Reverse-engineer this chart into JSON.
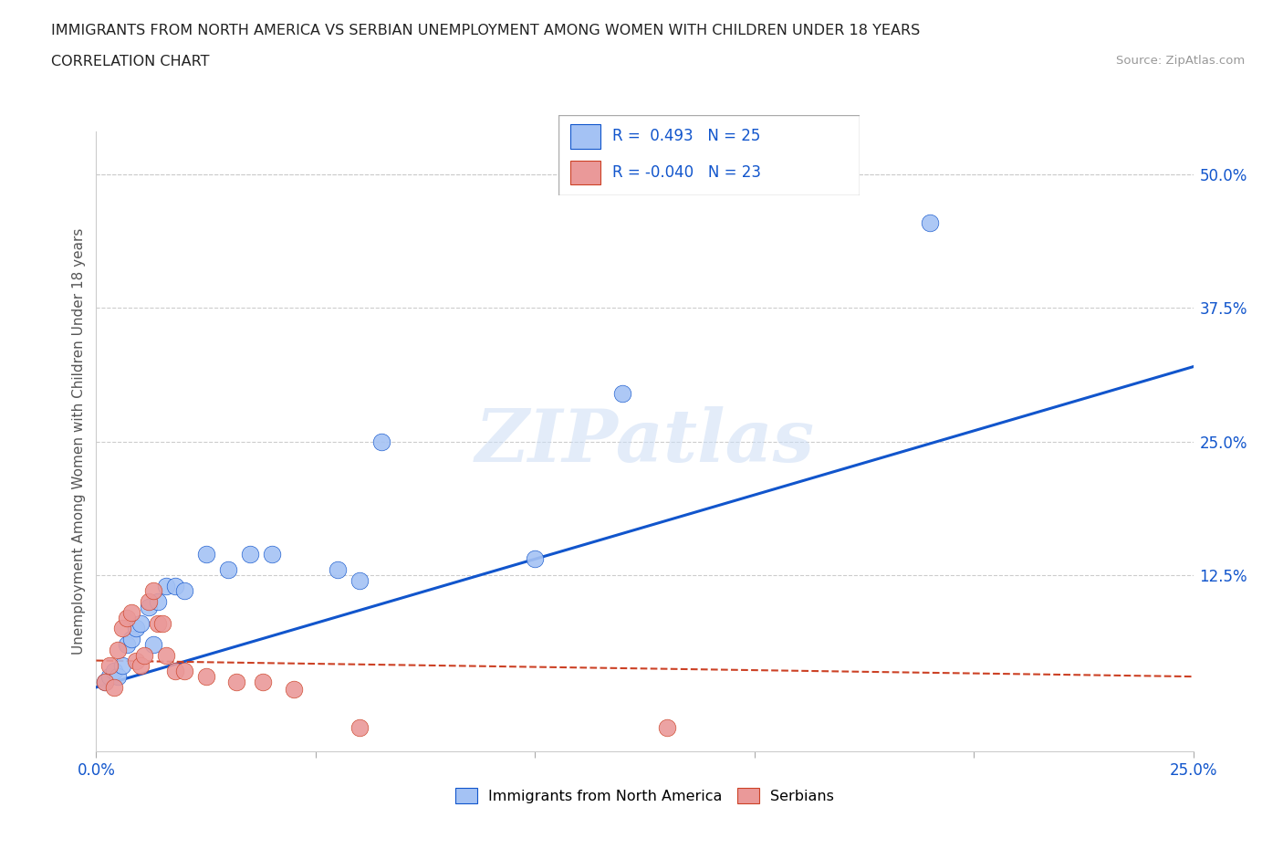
{
  "title": "IMMIGRANTS FROM NORTH AMERICA VS SERBIAN UNEMPLOYMENT AMONG WOMEN WITH CHILDREN UNDER 18 YEARS",
  "subtitle": "CORRELATION CHART",
  "source": "Source: ZipAtlas.com",
  "ylabel_label": "Unemployment Among Women with Children Under 18 years",
  "right_ytick_vals": [
    0.5,
    0.375,
    0.25,
    0.125
  ],
  "legend_labels": [
    "Immigrants from North America",
    "Serbians"
  ],
  "blue_color": "#a4c2f4",
  "pink_color": "#ea9999",
  "blue_line_color": "#1155cc",
  "pink_line_color": "#cc4125",
  "watermark": "ZIPatlas",
  "blue_points_x": [
    0.002,
    0.003,
    0.004,
    0.005,
    0.006,
    0.007,
    0.008,
    0.009,
    0.01,
    0.012,
    0.013,
    0.014,
    0.016,
    0.018,
    0.02,
    0.025,
    0.03,
    0.035,
    0.04,
    0.055,
    0.06,
    0.065,
    0.1,
    0.12,
    0.19
  ],
  "blue_points_y": [
    0.025,
    0.03,
    0.035,
    0.03,
    0.04,
    0.06,
    0.065,
    0.075,
    0.08,
    0.095,
    0.06,
    0.1,
    0.115,
    0.115,
    0.11,
    0.145,
    0.13,
    0.145,
    0.145,
    0.13,
    0.12,
    0.25,
    0.14,
    0.295,
    0.455
  ],
  "pink_points_x": [
    0.002,
    0.003,
    0.004,
    0.005,
    0.006,
    0.007,
    0.008,
    0.009,
    0.01,
    0.011,
    0.012,
    0.013,
    0.014,
    0.015,
    0.016,
    0.018,
    0.02,
    0.025,
    0.032,
    0.038,
    0.045,
    0.06,
    0.13
  ],
  "pink_points_y": [
    0.025,
    0.04,
    0.02,
    0.055,
    0.075,
    0.085,
    0.09,
    0.045,
    0.04,
    0.05,
    0.1,
    0.11,
    0.08,
    0.08,
    0.05,
    0.035,
    0.035,
    0.03,
    0.025,
    0.025,
    0.018,
    -0.018,
    -0.018
  ],
  "xlim": [
    0.0,
    0.25
  ],
  "ylim": [
    -0.04,
    0.54
  ],
  "blue_trend_x": [
    0.0,
    0.25
  ],
  "blue_trend_y": [
    0.02,
    0.32
  ],
  "pink_trend_x": [
    0.0,
    0.25
  ],
  "pink_trend_y": [
    0.045,
    0.03
  ]
}
